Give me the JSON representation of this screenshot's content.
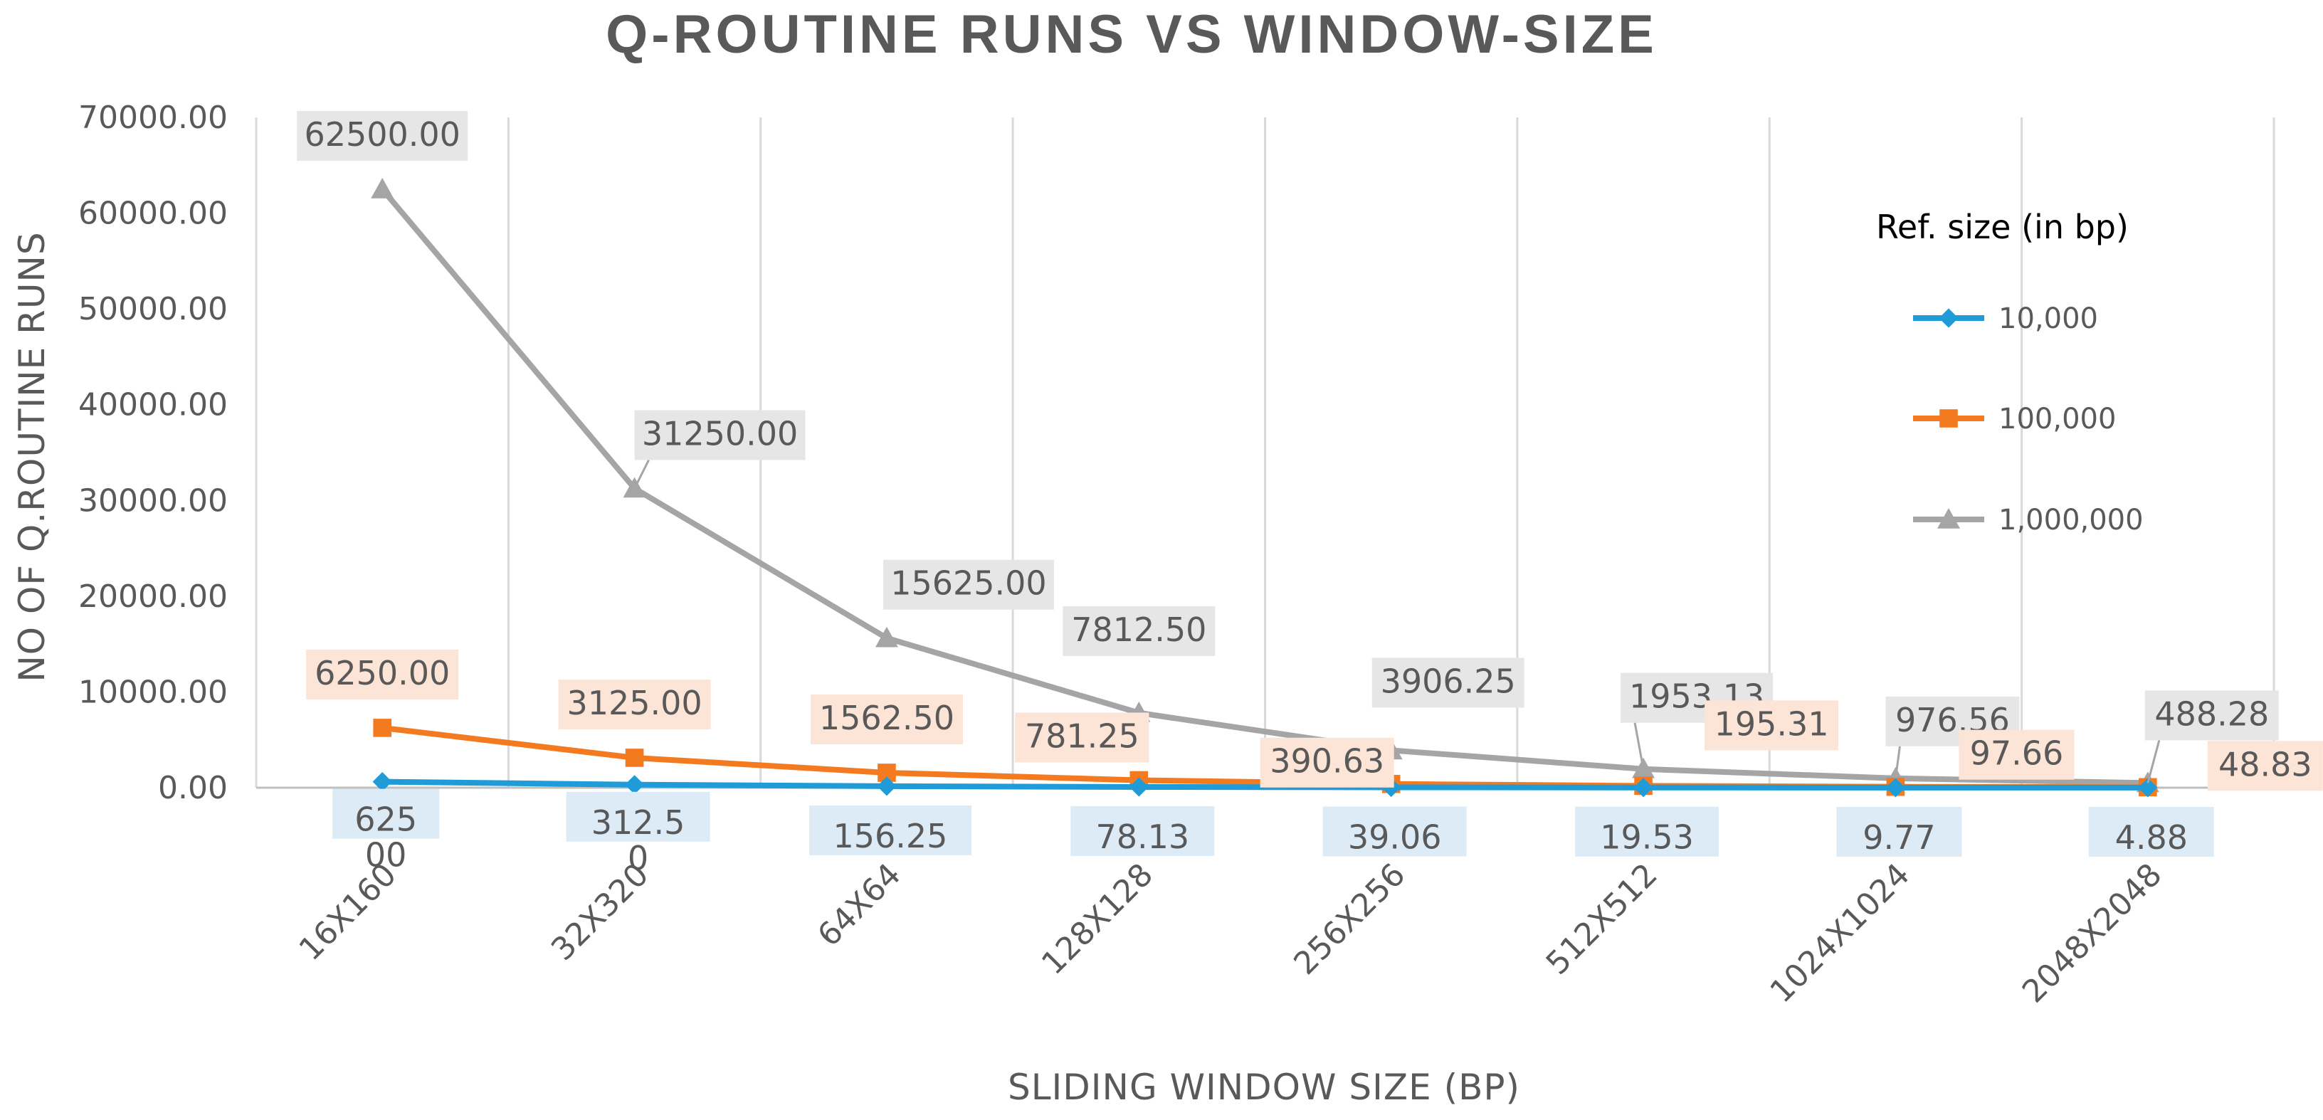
{
  "chart_data": {
    "type": "line",
    "title": "Q-ROUTINE RUNS VS WINDOW-SIZE",
    "xlabel": "SLIDING WINDOW SIZE (BP)",
    "ylabel": "NO OF Q.ROUTINE RUNS",
    "categories": [
      "16X160",
      "32X320",
      "64X64",
      "128X128",
      "256X256",
      "512X512",
      "1024X1024",
      "2048X2048"
    ],
    "ylim": [
      0,
      70000
    ],
    "yticks": [
      0,
      10000,
      20000,
      30000,
      40000,
      50000,
      60000,
      70000
    ],
    "ytick_labels": [
      "0.00",
      "10000.00",
      "20000.00",
      "30000.00",
      "40000.00",
      "50000.00",
      "60000.00",
      "70000.00"
    ],
    "grid": "vertical",
    "legend": {
      "title": "Ref. size (in bp)",
      "position": "right"
    },
    "series": [
      {
        "name": "10,000",
        "color": "#1F9BD7",
        "marker": "diamond",
        "values": [
          625,
          312.5,
          156.25,
          78.13,
          39.06,
          19.53,
          9.77,
          4.88
        ],
        "labels": [
          "625\n00",
          "312.5\n0",
          "156.25",
          "78.13",
          "39.06",
          "19.53",
          "9.77",
          "4.88"
        ],
        "label_bg": "#DDEBF7"
      },
      {
        "name": "100,000",
        "color": "#F47A20",
        "marker": "square",
        "values": [
          6250,
          3125,
          1562.5,
          781.25,
          390.63,
          195.31,
          97.66,
          48.83
        ],
        "labels": [
          "6250.00",
          "3125.00",
          "1562.50",
          "781.25",
          "390.63",
          "195.31",
          "97.66",
          "48.83"
        ],
        "label_bg": "#FCE4D6"
      },
      {
        "name": "1,000,000",
        "color": "#A5A5A5",
        "marker": "triangle",
        "values": [
          62500,
          31250,
          15625,
          7812.5,
          3906.25,
          1953.13,
          976.56,
          488.28
        ],
        "labels": [
          "62500.00",
          "31250.00",
          "15625.00",
          "7812.50",
          "3906.25",
          "1953.13",
          "976.56",
          "488.28"
        ],
        "label_bg": "#E7E6E6"
      }
    ]
  }
}
